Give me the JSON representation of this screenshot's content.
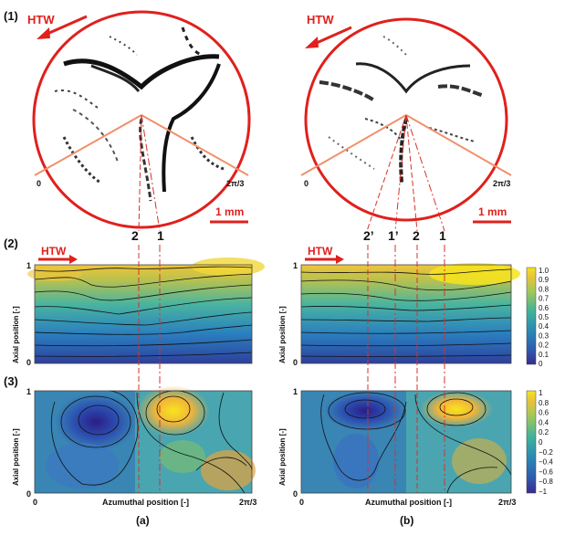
{
  "rows": {
    "r1": "(1)",
    "r2": "(2)",
    "r3": "(3)"
  },
  "columns": {
    "a": "(a)",
    "b": "(b)"
  },
  "circle_annotations": {
    "htw": "HTW",
    "scale": "1 mm",
    "angle_start": "0",
    "angle_end": "2π/3"
  },
  "line_labels": {
    "a": [
      "2",
      "1"
    ],
    "b": [
      "2’",
      "1’",
      "2",
      "1"
    ]
  },
  "axes": {
    "ylabel": "Axial position [-]",
    "xlabel": "Azumuthal position [-]",
    "y_tick_top": "1",
    "y_tick_bottom": "0",
    "x_tick_start": "0",
    "x_tick_end": "2π/3"
  },
  "colorbar_row2": {
    "ticks": [
      "1.0",
      "0.9",
      "0.8",
      "0.7",
      "0.6",
      "0.5",
      "0.4",
      "0.3",
      "0.2",
      "0.1",
      "0"
    ]
  },
  "colorbar_row3": {
    "ticks": [
      "1",
      "0.8",
      "0.6",
      "0.4",
      "0.2",
      "0",
      "−0.2",
      "−0.4",
      "−0.6",
      "−0.8",
      "−1"
    ]
  },
  "colors": {
    "accent_red": "#e0201c",
    "sector_line": "#f0906a",
    "dash_red": "#d9302a"
  }
}
